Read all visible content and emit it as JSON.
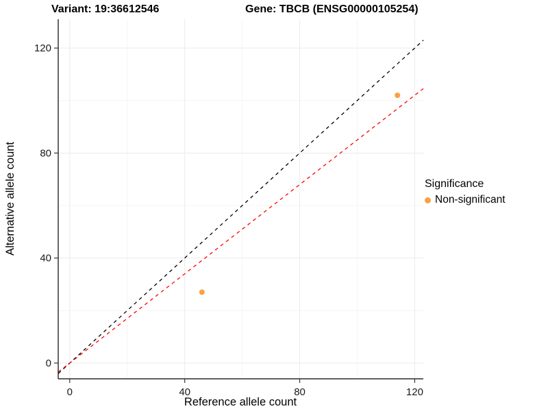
{
  "header": {
    "variant_title": "Variant: 19:36612546",
    "gene_title": "Gene: TBCB (ENSG00000105254)"
  },
  "legend": {
    "title": "Significance",
    "items": [
      {
        "label": "Non-significant",
        "color": "#F9A242"
      }
    ]
  },
  "chart_data": {
    "type": "scatter",
    "title": "Variant: 19:36612546 — Gene: TBCB (ENSG00000105254)",
    "xlabel": "Reference allele count",
    "ylabel": "Alternative allele count",
    "xlim": [
      -4,
      123
    ],
    "ylim": [
      -6,
      131
    ],
    "xticks": [
      0,
      40,
      80,
      120
    ],
    "yticks": [
      0,
      40,
      80,
      120
    ],
    "minor_xticks": [
      20,
      60,
      100
    ],
    "minor_yticks": [
      20,
      60,
      100
    ],
    "grid": true,
    "legend_position": "right",
    "point_color": "#F9A242",
    "points": [
      {
        "x": 46,
        "y": 27,
        "significance": "Non-significant"
      },
      {
        "x": 114,
        "y": 102,
        "significance": "Non-significant"
      }
    ],
    "lines": [
      {
        "name": "identity",
        "slope": 1,
        "intercept": 0,
        "color": "#000000",
        "dash": "5,5"
      },
      {
        "name": "fit",
        "slope": 0.85,
        "intercept": 0,
        "color": "#FF0000",
        "dash": "5,5"
      }
    ]
  }
}
